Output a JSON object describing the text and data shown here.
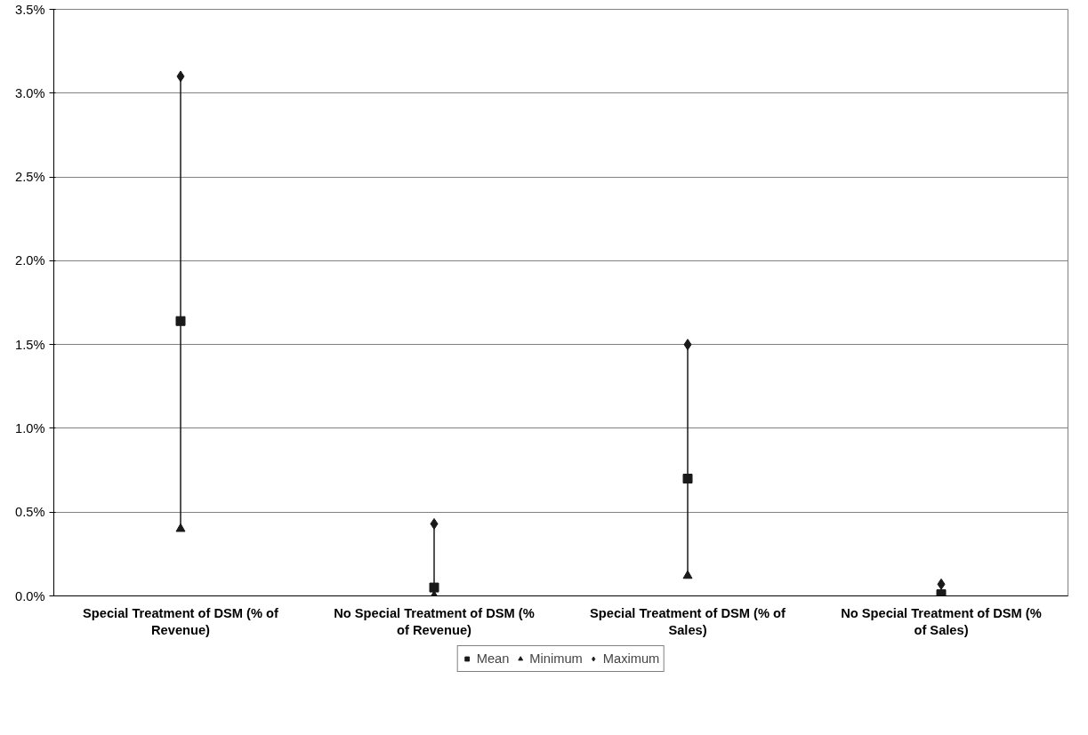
{
  "chart_data": {
    "type": "scatter",
    "categories": [
      "Special Treatment of DSM (% of Revenue)",
      "No Special Treatment of DSM (% of Revenue)",
      "Special Treatment of DSM (% of Sales)",
      "No Special Treatment of DSM (% of Sales)"
    ],
    "series": [
      {
        "type": "line",
        "color": "#1a1a1a",
        "marker": "none",
        "x": [
          "Special Treatment of DSM (% of Revenue)",
          "Special Treatment of DSM (% of Revenue)"
        ],
        "values": [
          0.4,
          3.1
        ]
      },
      {
        "type": "line",
        "color": "#1a1a1a",
        "marker": "none",
        "x": [
          "No Special Treatment of DSM (% of Revenue)",
          "No Special Treatment of DSM (% of Revenue)"
        ],
        "values": [
          0.0,
          0.43
        ]
      },
      {
        "type": "line",
        "color": "#1a1a1a",
        "marker": "none",
        "x": [
          "Special Treatment of DSM (% of Sales)",
          "Special Treatment of DSM (% of Sales)"
        ],
        "values": [
          0.12,
          1.5
        ]
      },
      {
        "name": "Mean",
        "color": "#1a1a1a",
        "marker": "square",
        "values": [
          1.64,
          0.05,
          0.7,
          0.01
        ]
      },
      {
        "name": "Minimum",
        "color": "#1a1a1a",
        "marker": "triangle",
        "values": [
          0.4,
          0.0,
          0.12,
          null
        ]
      },
      {
        "name": "Maximum",
        "color": "#1a1a1a",
        "marker": "diamond",
        "values": [
          3.1,
          0.43,
          1.5,
          0.07
        ]
      }
    ],
    "ylim": [
      0,
      3.5
    ],
    "yticks": [
      {
        "value": 0,
        "label": "0.0%"
      },
      {
        "value": 0.5,
        "label": "0.5%"
      },
      {
        "value": 1,
        "label": "1.0%"
      },
      {
        "value": 1.5,
        "label": "1.5%"
      },
      {
        "value": 2,
        "label": "2.0%"
      },
      {
        "value": 2.5,
        "label": "2.5%"
      },
      {
        "value": 3,
        "label": "3.0%"
      },
      {
        "value": 3.5,
        "label": "3.5%"
      }
    ],
    "grid": "y",
    "legend": "bottom"
  }
}
